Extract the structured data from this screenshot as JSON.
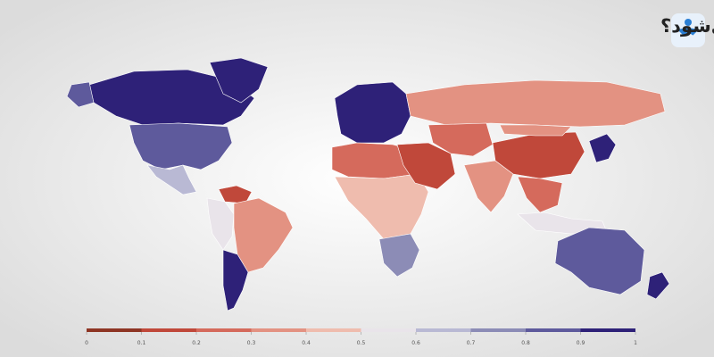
{
  "title": "چگونه میزان آزادی یک کشور اندازه‌گیری می‌شود؟",
  "legend": {
    "ticks": [
      0,
      0.1,
      0.2,
      0.3,
      0.4,
      0.5,
      0.6,
      0.7,
      0.8,
      0.9,
      1
    ],
    "colors": [
      "#8e3524",
      "#c0483a",
      "#d56a5c",
      "#e39282",
      "#efbcae",
      "#e9e4ea",
      "#b9b9d4",
      "#8c8cb6",
      "#5e5a9c",
      "#2e2178"
    ]
  },
  "map": {
    "region_values": [
      0.97,
      0.97,
      0.85,
      0.85,
      0.6,
      0.1,
      0.55,
      0.35,
      0.92,
      0.92,
      0.3,
      0.2,
      0.45,
      0.7,
      0.1,
      0.2,
      0.35,
      0.1,
      0.3,
      0.2,
      0.55,
      0.92,
      0.88,
      0.92
    ]
  }
}
